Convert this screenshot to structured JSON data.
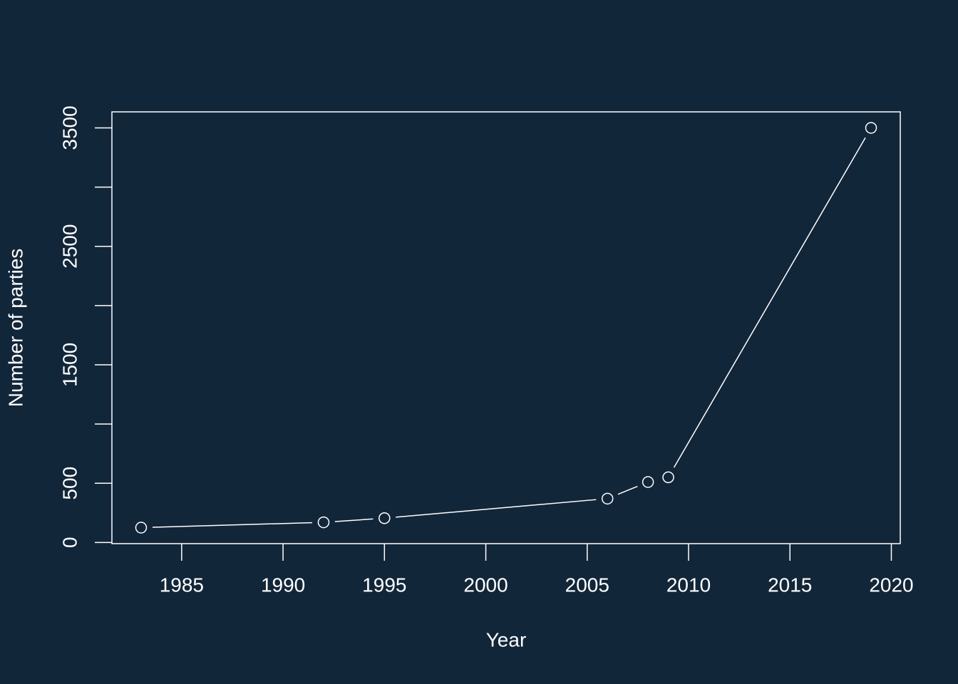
{
  "chart_data": {
    "type": "line",
    "x_label": "Year",
    "y_label": "Number of parties",
    "x": [
      1983,
      1992,
      1995,
      2006,
      2008,
      2009,
      2019
    ],
    "series": [
      {
        "color": "#ffffff",
        "values": [
          125,
          170,
          205,
          370,
          510,
          550,
          3500
        ]
      }
    ],
    "markers": "open-circle",
    "xlim": [
      1981.56,
      2020.44
    ],
    "xticks": [
      1985,
      1990,
      1995,
      2000,
      2005,
      2010,
      2015,
      2020
    ],
    "ylim": [
      -10,
      3635
    ],
    "yticks": [
      0,
      500,
      {
        "value": 1000,
        "label": null
      },
      1500,
      {
        "value": 2000,
        "label": null
      },
      2500,
      {
        "value": 3000,
        "label": null
      },
      3500
    ],
    "background": "#12263a",
    "foreground": "#ffffff",
    "grid": false
  }
}
